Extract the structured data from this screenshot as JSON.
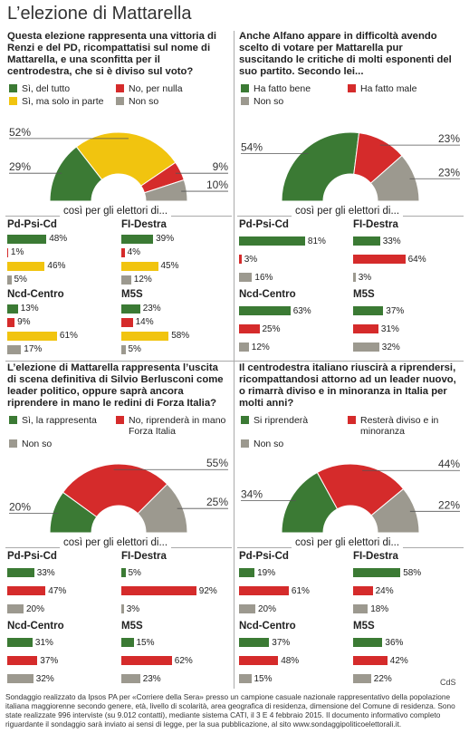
{
  "title": "L’elezione di Mattarella",
  "chart_data": [
    {
      "type": "half-donut",
      "title": "Questa elezione rappresenta una vittoria di Renzi e del PD, ricompattatisi sul nome di Mattarella, e una sconfitta per il centrodestra, che si è diviso sul voto?",
      "series": [
        {
          "name": "Sì, del tutto",
          "color": "#3b7a34"
        },
        {
          "name": "No, per nulla",
          "color": "#d52b2b"
        },
        {
          "name": "Sì, ma solo in parte",
          "color": "#f1c40f"
        },
        {
          "name": "Non so",
          "color": "#9c998f"
        }
      ],
      "values": [
        29,
        9,
        52,
        10
      ],
      "value_labels": [
        "29%",
        "9%",
        "52%",
        "10%"
      ],
      "subtitle": "così per gli elettori di...",
      "groups": [
        {
          "name": "Pd-Psi-Cd",
          "values": [
            48,
            1,
            46,
            5
          ],
          "value_labels": [
            "48%",
            "1%",
            "46%",
            "5%"
          ]
        },
        {
          "name": "FI-Destra",
          "values": [
            39,
            4,
            45,
            12
          ],
          "value_labels": [
            "39%",
            "4%",
            "45%",
            "12%"
          ]
        },
        {
          "name": "Ncd-Centro",
          "values": [
            13,
            9,
            61,
            17
          ],
          "value_labels": [
            "13%",
            "9%",
            "61%",
            "17%"
          ]
        },
        {
          "name": "M5S",
          "values": [
            23,
            14,
            58,
            5
          ],
          "value_labels": [
            "23%",
            "14%",
            "58%",
            "5%"
          ]
        }
      ]
    },
    {
      "type": "half-donut",
      "title": "Anche Alfano appare in difficoltà avendo scelto di votare per Mattarella pur suscitando le critiche di molti esponenti del suo partito. Secondo lei...",
      "series": [
        {
          "name": "Ha fatto bene",
          "color": "#3b7a34"
        },
        {
          "name": "Ha fatto male",
          "color": "#d52b2b"
        },
        {
          "name": "Non so",
          "color": "#9c998f"
        }
      ],
      "values": [
        54,
        23,
        23
      ],
      "value_labels": [
        "54%",
        "23%",
        "23%"
      ],
      "subtitle": "così per gli elettori di...",
      "groups": [
        {
          "name": "Pd-Psi-Cd",
          "values": [
            81,
            3,
            16
          ],
          "value_labels": [
            "81%",
            "3%",
            "16%"
          ]
        },
        {
          "name": "FI-Destra",
          "values": [
            33,
            64,
            3
          ],
          "value_labels": [
            "33%",
            "64%",
            "3%"
          ]
        },
        {
          "name": "Ncd-Centro",
          "values": [
            63,
            25,
            12
          ],
          "value_labels": [
            "63%",
            "25%",
            "12%"
          ]
        },
        {
          "name": "M5S",
          "values": [
            37,
            31,
            32
          ],
          "value_labels": [
            "37%",
            "31%",
            "32%"
          ]
        }
      ]
    },
    {
      "type": "half-donut",
      "title": "L’elezione di Mattarella rappresenta l’uscita di scena definitiva di Silvio Berlusconi come leader politico, oppure saprà ancora riprendere in mano le redini di Forza Italia?",
      "series": [
        {
          "name": "Sì, la rappresenta",
          "color": "#3b7a34"
        },
        {
          "name": "No, riprenderà in mano Forza Italia",
          "color": "#d52b2b"
        },
        {
          "name": "Non so",
          "color": "#9c998f"
        }
      ],
      "values": [
        20,
        55,
        25
      ],
      "value_labels": [
        "20%",
        "55%",
        "25%"
      ],
      "subtitle": "così per gli elettori di...",
      "groups": [
        {
          "name": "Pd-Psi-Cd",
          "values": [
            33,
            47,
            20
          ],
          "value_labels": [
            "33%",
            "47%",
            "20%"
          ]
        },
        {
          "name": "FI-Destra",
          "values": [
            5,
            92,
            3
          ],
          "value_labels": [
            "5%",
            "92%",
            "3%"
          ]
        },
        {
          "name": "Ncd-Centro",
          "values": [
            31,
            37,
            32
          ],
          "value_labels": [
            "31%",
            "37%",
            "32%"
          ]
        },
        {
          "name": "M5S",
          "values": [
            15,
            62,
            23
          ],
          "value_labels": [
            "15%",
            "62%",
            "23%"
          ]
        }
      ]
    },
    {
      "type": "half-donut",
      "title": "Il centrodestra italiano riuscirà a riprendersi, ricompattandosi attorno ad un leader nuovo, o rimarrà diviso e in minoranza in Italia per molti anni?",
      "series": [
        {
          "name": "Si riprenderà",
          "color": "#3b7a34"
        },
        {
          "name": "Resterà diviso e in minoranza",
          "color": "#d52b2b"
        },
        {
          "name": "Non so",
          "color": "#9c998f"
        }
      ],
      "values": [
        34,
        44,
        22
      ],
      "value_labels": [
        "34%",
        "44%",
        "22%"
      ],
      "subtitle": "così per gli elettori di...",
      "groups": [
        {
          "name": "Pd-Psi-Cd",
          "values": [
            19,
            61,
            20
          ],
          "value_labels": [
            "19%",
            "61%",
            "20%"
          ]
        },
        {
          "name": "FI-Destra",
          "values": [
            58,
            24,
            18
          ],
          "value_labels": [
            "58%",
            "24%",
            "18%"
          ]
        },
        {
          "name": "Ncd-Centro",
          "values": [
            37,
            48,
            15
          ],
          "value_labels": [
            "37%",
            "48%",
            "15%"
          ]
        },
        {
          "name": "M5S",
          "values": [
            36,
            42,
            22
          ],
          "value_labels": [
            "36%",
            "42%",
            "22%"
          ]
        }
      ]
    }
  ],
  "footer": "Sondaggio realizzato da Ipsos PA per «Corriere della Sera» presso un campione casuale nazionale rappresentativo della popolazione italiana maggiorenne secondo genere, età, livello di scolarità, area geografica di residenza, dimensione del Comune di residenza. Sono state realizzate 996 interviste (su 9.012 contatti), mediante sistema CATI, il 3 E 4 febbraio 2015. Il documento informativo completo riguardante il sondaggio sarà inviato ai sensi di legge, per la sua pubblicazione, al sito www.sondaggipoliticoelettorali.it.",
  "credit": "CdS"
}
